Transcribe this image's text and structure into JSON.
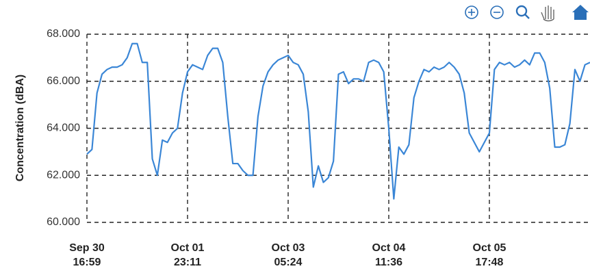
{
  "chart_data": {
    "type": "line",
    "ylabel": "Concentration (dBA)",
    "ylim": [
      60,
      68
    ],
    "yticks": [
      {
        "value": 60,
        "label": "60.000"
      },
      {
        "value": 62,
        "label": "62.000"
      },
      {
        "value": 64,
        "label": "64.000"
      },
      {
        "value": 66,
        "label": "66.000"
      },
      {
        "value": 68,
        "label": "68.000"
      }
    ],
    "grid": true,
    "color": "#3a86d6",
    "categories": [
      "Sep 30\n16:59",
      null,
      null,
      null,
      null,
      null,
      null,
      null,
      null,
      null,
      null,
      null,
      null,
      null,
      null,
      null,
      null,
      null,
      null,
      null,
      "Oct 01\n23:11",
      null,
      null,
      null,
      null,
      null,
      null,
      null,
      null,
      null,
      null,
      null,
      null,
      null,
      null,
      null,
      null,
      null,
      null,
      null,
      "Oct 03\n05:24",
      null,
      null,
      null,
      null,
      null,
      null,
      null,
      null,
      null,
      null,
      null,
      null,
      null,
      null,
      null,
      null,
      null,
      null,
      null,
      "Oct 04\n11:36",
      null,
      null,
      null,
      null,
      null,
      null,
      null,
      null,
      null,
      null,
      null,
      null,
      null,
      null,
      null,
      null,
      null,
      null,
      null,
      "Oct 05\n17:48",
      null,
      null,
      null,
      null,
      null,
      null,
      null,
      null,
      null,
      null,
      null,
      null,
      null,
      null,
      null,
      null,
      null,
      null,
      null,
      null
    ],
    "values": [
      62.9,
      63.1,
      65.5,
      66.3,
      66.5,
      66.6,
      66.6,
      66.7,
      67.0,
      67.6,
      67.6,
      66.8,
      66.8,
      62.7,
      62.0,
      63.5,
      63.4,
      63.8,
      64.0,
      65.5,
      66.4,
      66.7,
      66.6,
      66.5,
      67.1,
      67.4,
      67.4,
      66.8,
      64.5,
      62.5,
      62.5,
      62.2,
      62.0,
      62.0,
      64.5,
      65.8,
      66.4,
      66.7,
      66.9,
      67.0,
      67.1,
      66.8,
      66.7,
      66.3,
      64.7,
      61.5,
      62.4,
      61.7,
      61.9,
      62.6,
      66.3,
      66.4,
      65.9,
      66.1,
      66.1,
      66.0,
      66.8,
      66.9,
      66.8,
      66.4,
      64.0,
      61.0,
      63.2,
      62.9,
      63.3,
      65.3,
      66.0,
      66.5,
      66.4,
      66.6,
      66.5,
      66.6,
      66.8,
      66.6,
      66.3,
      65.5,
      63.8,
      63.4,
      63.0,
      63.4,
      63.8,
      66.5,
      66.8,
      66.7,
      66.8,
      66.6,
      66.7,
      66.9,
      66.7,
      67.2,
      67.2,
      66.8,
      65.7,
      63.2,
      63.2,
      63.3,
      64.2,
      66.5,
      66.0,
      66.7,
      66.8
    ]
  }
}
